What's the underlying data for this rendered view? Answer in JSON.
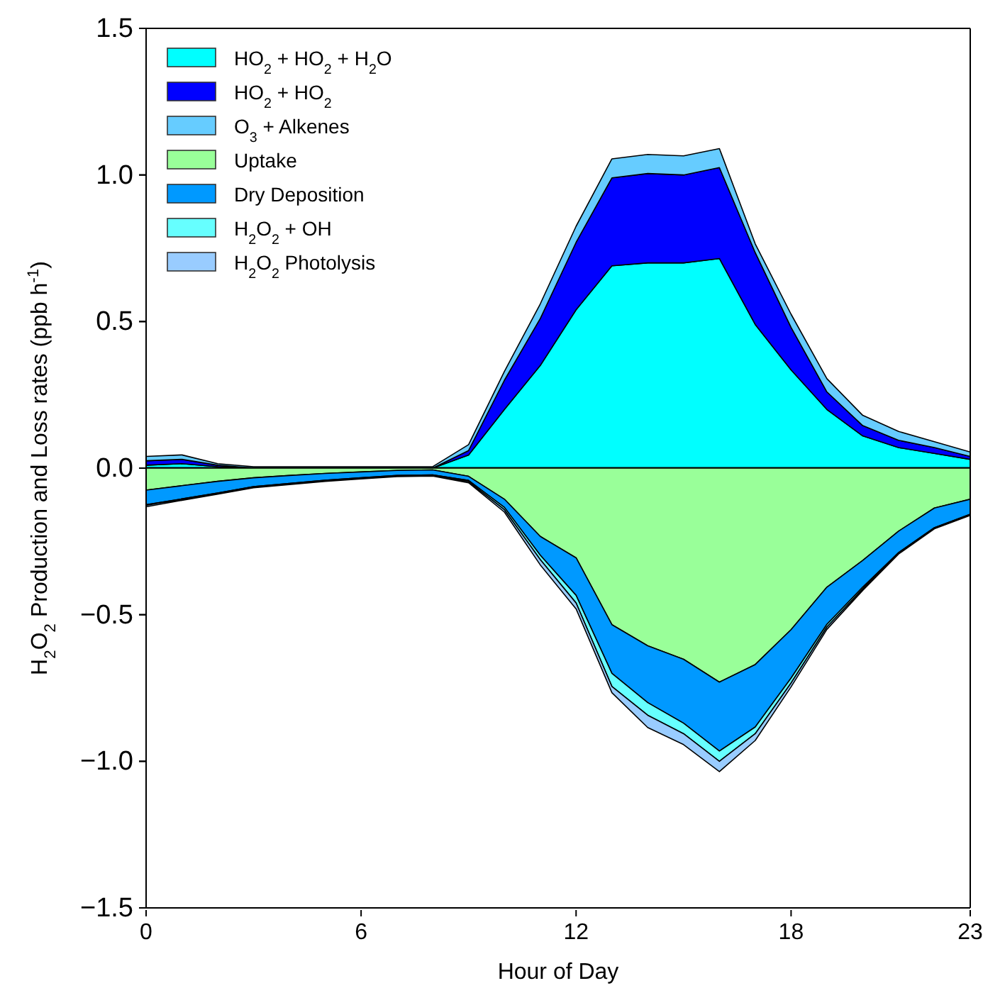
{
  "chart_data": [
    {
      "type": "area",
      "stacked": true,
      "xlabel": "Hour of Day",
      "ylabel": "H$_{2}$O$_{2}$ Production and Loss rates (ppb h$^{-1}$)",
      "x": [
        0,
        1,
        2,
        3,
        4,
        5,
        6,
        7,
        8,
        9,
        10,
        11,
        12,
        13,
        14,
        15,
        16,
        17,
        18,
        19,
        20,
        21,
        22,
        23
      ],
      "xlim": [
        0,
        23
      ],
      "xticks": [
        0,
        6,
        12,
        18,
        23
      ],
      "ylim": [
        -1.5,
        1.5
      ],
      "yticks": [
        {
          "value": -1.5,
          "label": "−1.5"
        },
        {
          "value": -1,
          "label": "−1.0"
        },
        {
          "value": -0.5,
          "label": "−0.5"
        },
        {
          "value": 0,
          "label": "0.0"
        },
        {
          "value": 0.5,
          "label": "0.5"
        },
        {
          "value": 1,
          "label": "1.0"
        },
        {
          "value": 1.5,
          "label": "1.5"
        }
      ],
      "grid": false,
      "legend": "top left",
      "ref_lines": [
        {
          "axis": "y",
          "value": 0,
          "color": "#000000"
        }
      ],
      "series": [
        {
          "name": "HO$_{2}$ + HO$_{2}$ + H$_{2}$O",
          "color": "#00ffff",
          "values": [
            0.01,
            0.015,
            0.005,
            0,
            0,
            0,
            0,
            0,
            0,
            0.045,
            0.2,
            0.35,
            0.54,
            0.69,
            0.7,
            0.7,
            0.715,
            0.49,
            0.335,
            0.2,
            0.11,
            0.07,
            0.05,
            0.03
          ]
        },
        {
          "name": "HO$_{2}$ + HO$_{2}$",
          "color": "#0000ff",
          "values": [
            0.015,
            0.015,
            0.005,
            0,
            0,
            0,
            0,
            0,
            0,
            0.015,
            0.1,
            0.16,
            0.23,
            0.3,
            0.305,
            0.3,
            0.31,
            0.245,
            0.145,
            0.06,
            0.035,
            0.025,
            0.02,
            0.01
          ]
        },
        {
          "name": "O$_{3}$ + Alkenes",
          "color": "#66ccff",
          "values": [
            0.015,
            0.015,
            0.005,
            0.005,
            0.005,
            0.005,
            0.005,
            0.005,
            0.005,
            0.02,
            0.03,
            0.05,
            0.055,
            0.065,
            0.065,
            0.065,
            0.065,
            0.03,
            0.045,
            0.045,
            0.035,
            0.03,
            0.02,
            0.015
          ]
        }
      ]
    },
    {
      "type": "area",
      "stacked": true,
      "tick_labels": false,
      "x": [
        0,
        1,
        2,
        3,
        4,
        5,
        6,
        7,
        8,
        9,
        10,
        11,
        12,
        13,
        14,
        15,
        16,
        17,
        18,
        19,
        20,
        21,
        22,
        23
      ],
      "xlim": [
        0,
        23
      ],
      "xticks": [
        0,
        6,
        12,
        18,
        23
      ],
      "ylim": [
        -1.5,
        1.5
      ],
      "yticks": [
        {
          "value": -1.5,
          "label": null
        },
        {
          "value": -1,
          "label": null
        },
        {
          "value": -0.5,
          "label": null
        },
        {
          "value": 0,
          "label": null
        },
        {
          "value": 0.5,
          "label": null
        },
        {
          "value": 1,
          "label": null
        },
        {
          "value": 1.5,
          "label": null
        }
      ],
      "legend": "top left",
      "series": [
        {
          "name": "Uptake",
          "color": "#99ff99",
          "values": [
            -0.075,
            -0.06,
            -0.045,
            -0.033,
            -0.025,
            -0.018,
            -0.013,
            -0.008,
            -0.006,
            -0.028,
            -0.106,
            -0.233,
            -0.306,
            -0.534,
            -0.606,
            -0.652,
            -0.73,
            -0.67,
            -0.551,
            -0.406,
            -0.315,
            -0.215,
            -0.136,
            -0.106
          ]
        },
        {
          "name": "Dry Deposition",
          "color": "#0099ff",
          "values": [
            -0.05,
            -0.045,
            -0.04,
            -0.03,
            -0.027,
            -0.023,
            -0.02,
            -0.017,
            -0.017,
            -0.014,
            -0.028,
            -0.064,
            -0.128,
            -0.166,
            -0.194,
            -0.218,
            -0.235,
            -0.213,
            -0.165,
            -0.127,
            -0.091,
            -0.073,
            -0.067,
            -0.051
          ]
        },
        {
          "name": "H$_{2}$O$_{2}$ + OH",
          "color": "#66ffff",
          "values": [
            -0.002,
            -0.002,
            -0.002,
            -0.002,
            -0.002,
            -0.002,
            -0.002,
            -0.002,
            -0.002,
            -0.004,
            -0.008,
            -0.015,
            -0.026,
            -0.045,
            -0.043,
            -0.036,
            -0.035,
            -0.023,
            -0.017,
            -0.009,
            -0.006,
            -0.003,
            -0.002,
            -0.002
          ]
        },
        {
          "name": "H$_{2}$O$_{2}$ Photolysis",
          "color": "#99ccff",
          "values": [
            -0.005,
            -0.003,
            -0.002,
            -0.002,
            -0.002,
            -0.002,
            -0.002,
            -0.002,
            -0.002,
            -0.004,
            -0.008,
            -0.018,
            -0.02,
            -0.021,
            -0.042,
            -0.037,
            -0.035,
            -0.023,
            -0.013,
            -0.008,
            -0.005,
            -0.002,
            -0.002,
            -0.002
          ]
        }
      ]
    }
  ]
}
